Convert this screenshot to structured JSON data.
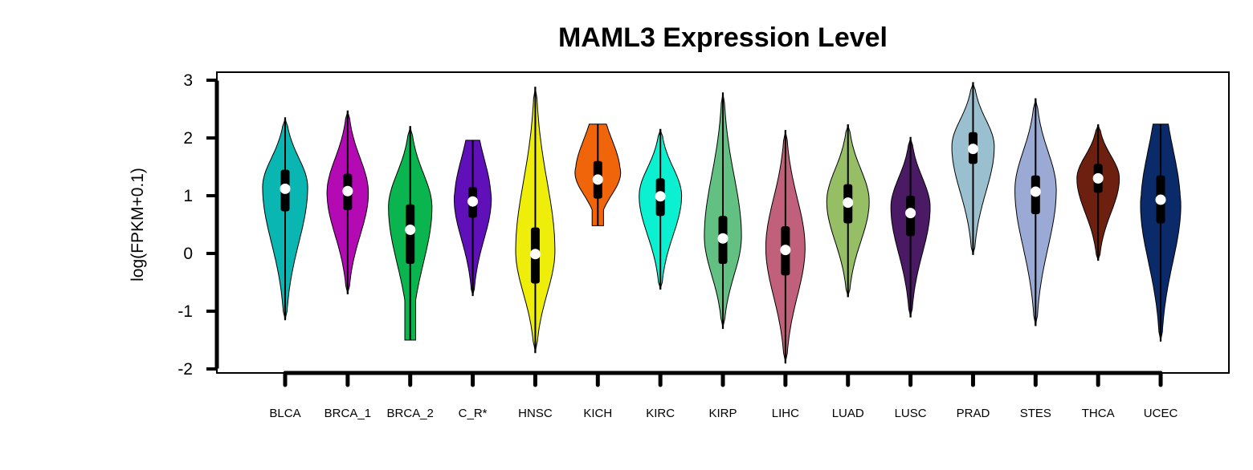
{
  "chart_data": {
    "type": "violin",
    "title": "MAML3 Expression Level",
    "xlabel": "",
    "ylabel": "log(FPKM+0.1)",
    "ylim": [
      -2,
      3
    ],
    "yticks": [
      "3",
      "2",
      "1",
      "0",
      "-1",
      "-2"
    ],
    "ytick_values": [
      3,
      2,
      1,
      0,
      -1,
      -2
    ],
    "categories": [
      "BLCA",
      "BRCA_1",
      "BRCA_2",
      "C_R*",
      "HNSC",
      "KICH",
      "KIRC",
      "KIRP",
      "LIHC",
      "LUAD",
      "LUSC",
      "PRAD",
      "STES",
      "THCA",
      "UCEC"
    ],
    "colors": [
      "#0ab6b2",
      "#b40ab4",
      "#0ab44e",
      "#6010b8",
      "#eeee0a",
      "#f0640a",
      "#0af0d0",
      "#62c082",
      "#c0607a",
      "#96be64",
      "#4a1a64",
      "#9ac0d0",
      "#9aaad4",
      "#6e2010",
      "#0a2a6a"
    ],
    "violins": [
      {
        "name": "BLCA",
        "min": -1.15,
        "max": 2.35,
        "q1": 0.73,
        "median": 1.12,
        "q3": 1.45,
        "mode": 1.15,
        "width": 0.85,
        "flat_top": false,
        "flat_bottom": false
      },
      {
        "name": "BRCA_1",
        "min": -0.7,
        "max": 2.47,
        "q1": 0.75,
        "median": 1.08,
        "q3": 1.38,
        "mode": 1.05,
        "width": 0.78,
        "flat_top": false,
        "flat_bottom": false
      },
      {
        "name": "BRCA_2",
        "min": -1.5,
        "max": 2.2,
        "q1": -0.18,
        "median": 0.41,
        "q3": 0.85,
        "mode": 0.8,
        "width": 0.82,
        "flat_top": false,
        "flat_bottom": true
      },
      {
        "name": "C_R*",
        "min": -0.73,
        "max": 1.96,
        "q1": 0.62,
        "median": 0.9,
        "q3": 1.15,
        "mode": 0.95,
        "width": 0.7,
        "flat_top": true,
        "flat_bottom": false
      },
      {
        "name": "HNSC",
        "min": -1.72,
        "max": 2.88,
        "q1": -0.52,
        "median": -0.01,
        "q3": 0.45,
        "mode": 0.05,
        "width": 0.74,
        "flat_top": false,
        "flat_bottom": false
      },
      {
        "name": "KICH",
        "min": 0.48,
        "max": 2.24,
        "q1": 0.95,
        "median": 1.28,
        "q3": 1.6,
        "mode": 1.4,
        "width": 0.86,
        "flat_top": true,
        "flat_bottom": true
      },
      {
        "name": "KIRC",
        "min": -0.62,
        "max": 2.15,
        "q1": 0.65,
        "median": 0.99,
        "q3": 1.3,
        "mode": 1.0,
        "width": 0.8,
        "flat_top": false,
        "flat_bottom": false
      },
      {
        "name": "KIRP",
        "min": -1.3,
        "max": 2.78,
        "q1": -0.18,
        "median": 0.26,
        "q3": 0.65,
        "mode": 0.3,
        "width": 0.7,
        "flat_top": false,
        "flat_bottom": false
      },
      {
        "name": "LIHC",
        "min": -1.9,
        "max": 2.13,
        "q1": -0.38,
        "median": 0.06,
        "q3": 0.47,
        "mode": 0.1,
        "width": 0.74,
        "flat_top": false,
        "flat_bottom": false
      },
      {
        "name": "LUAD",
        "min": -0.75,
        "max": 2.23,
        "q1": 0.52,
        "median": 0.88,
        "q3": 1.2,
        "mode": 0.9,
        "width": 0.8,
        "flat_top": false,
        "flat_bottom": false
      },
      {
        "name": "LUSC",
        "min": -1.1,
        "max": 2.01,
        "q1": 0.3,
        "median": 0.7,
        "q3": 1.0,
        "mode": 0.8,
        "width": 0.74,
        "flat_top": false,
        "flat_bottom": false
      },
      {
        "name": "PRAD",
        "min": -0.02,
        "max": 2.96,
        "q1": 1.55,
        "median": 1.81,
        "q3": 2.1,
        "mode": 1.85,
        "width": 0.8,
        "flat_top": false,
        "flat_bottom": false
      },
      {
        "name": "STES",
        "min": -1.25,
        "max": 2.68,
        "q1": 0.68,
        "median": 1.07,
        "q3": 1.35,
        "mode": 1.1,
        "width": 0.78,
        "flat_top": false,
        "flat_bottom": false
      },
      {
        "name": "THCA",
        "min": -0.12,
        "max": 2.23,
        "q1": 1.05,
        "median": 1.3,
        "q3": 1.55,
        "mode": 1.3,
        "width": 0.8,
        "flat_top": false,
        "flat_bottom": false
      },
      {
        "name": "UCEC",
        "min": -1.52,
        "max": 2.24,
        "q1": 0.52,
        "median": 0.93,
        "q3": 1.35,
        "mode": 0.85,
        "width": 0.76,
        "flat_top": true,
        "flat_bottom": false
      }
    ],
    "grid": false,
    "legend": "none"
  }
}
